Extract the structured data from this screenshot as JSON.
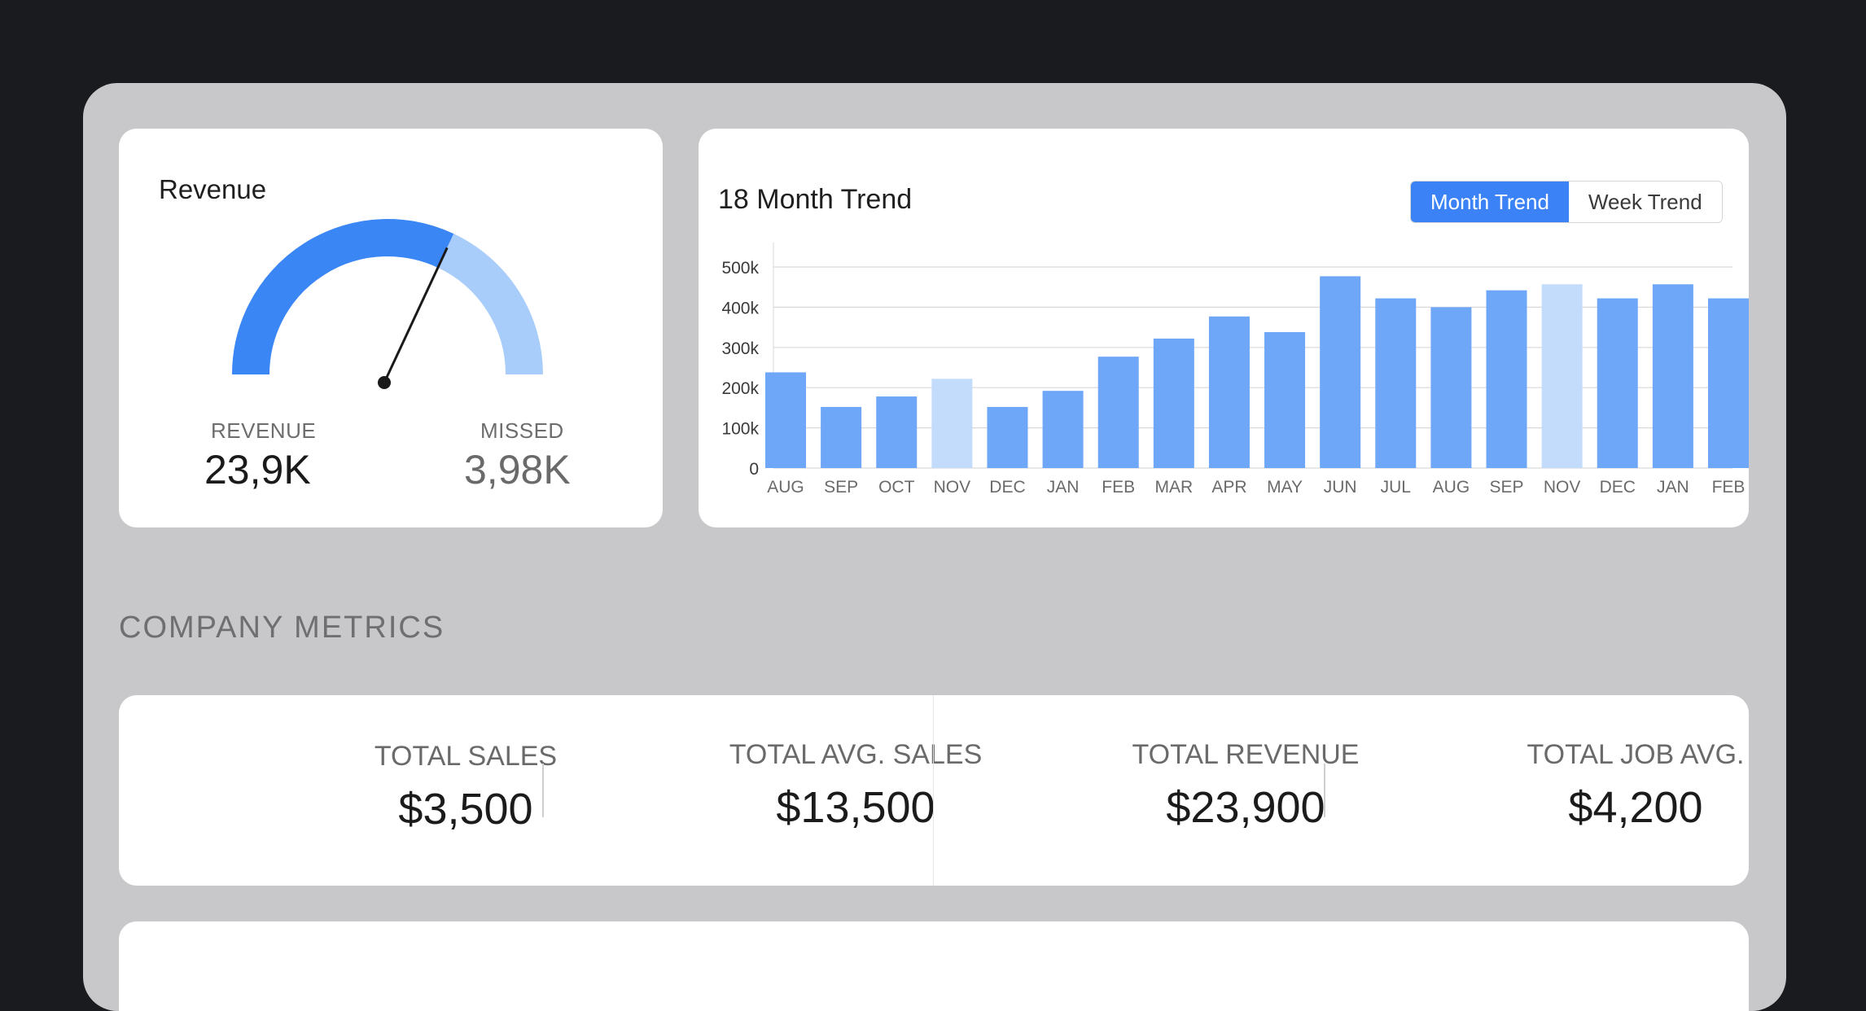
{
  "revenue_card": {
    "title": "Revenue",
    "revenue_label": "REVENUE",
    "revenue_value": "23,9K",
    "missed_label": "MISSED",
    "missed_value": "3,98K",
    "gauge_fraction": 0.64,
    "colors": {
      "filled": "#3b86f5",
      "remaining": "#a9cdfb",
      "needle": "#1a1a1a"
    }
  },
  "trend_card": {
    "title": "18 Month Trend",
    "toggle": {
      "month_label": "Month Trend",
      "week_label": "Week Trend",
      "active": "month"
    }
  },
  "chart_data": {
    "type": "bar",
    "title": "18 Month Trend",
    "categories": [
      "AUG",
      "SEP",
      "OCT",
      "NOV",
      "DEC",
      "JAN",
      "FEB",
      "MAR",
      "APR",
      "MAY",
      "JUN",
      "JUL",
      "AUG",
      "SEP",
      "NOV",
      "DEC",
      "JAN",
      "FEB"
    ],
    "values": [
      238000,
      152000,
      178000,
      222000,
      152000,
      192000,
      277000,
      322000,
      377000,
      338000,
      477000,
      422000,
      400000,
      442000,
      457000,
      422000,
      457000,
      422000
    ],
    "highlighted_indices": [
      3,
      14
    ],
    "y_ticks": [
      "0",
      "100k",
      "200k",
      "300k",
      "400k",
      "500k"
    ],
    "ylim": [
      0,
      500000
    ],
    "grid": true,
    "colors": {
      "bar": "#6ea6f8",
      "highlight": "#c3dcfb",
      "grid": "#d9d9d9"
    }
  },
  "section": {
    "title": "COMPANY METRICS"
  },
  "metrics": [
    {
      "label": "TOTAL SALES",
      "value": "$3,500"
    },
    {
      "label": "TOTAL AVG. SALES",
      "value": "$13,500"
    },
    {
      "label": "TOTAL REVENUE",
      "value": "$23,900"
    },
    {
      "label": "TOTAL JOB AVG.",
      "value": "$4,200"
    }
  ]
}
